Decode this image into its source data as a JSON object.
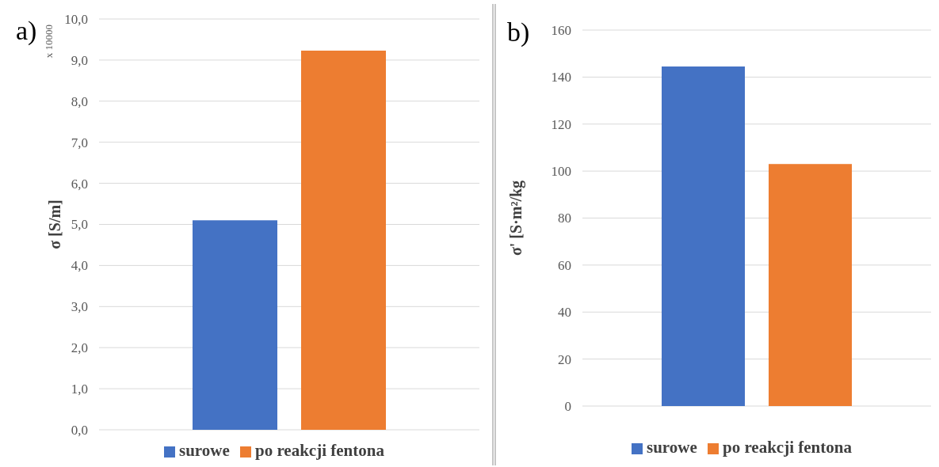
{
  "chart_data": [
    {
      "type": "bar",
      "title": "a)",
      "ylabel": "σ [S/m]",
      "annotations": [
        "x 10000"
      ],
      "categories": [
        null
      ],
      "series": [
        {
          "name": "surowe",
          "color": "#4472c4",
          "values": [
            5.1
          ]
        },
        {
          "name": "po reakcji fentona",
          "color": "#ed7d31",
          "values": [
            9.23
          ]
        }
      ],
      "ylim": [
        0,
        10
      ],
      "yticks": [
        {
          "value": 0,
          "label": "0,0"
        },
        {
          "value": 1,
          "label": "1,0"
        },
        {
          "value": 2,
          "label": "2,0"
        },
        {
          "value": 3,
          "label": "3,0"
        },
        {
          "value": 4,
          "label": "4,0"
        },
        {
          "value": 5,
          "label": "5,0"
        },
        {
          "value": 6,
          "label": "6,0"
        },
        {
          "value": 7,
          "label": "7,0"
        },
        {
          "value": 8,
          "label": "8,0"
        },
        {
          "value": 9,
          "label": "9,0"
        },
        {
          "value": 10,
          "label": "10,0"
        }
      ],
      "grid": "y",
      "legend": "bottom"
    },
    {
      "type": "bar",
      "title": "b)",
      "ylabel": "σ' [S·m²/kg",
      "categories": [
        null
      ],
      "series": [
        {
          "name": "surowe",
          "color": "#4472c4",
          "values": [
            144.5
          ]
        },
        {
          "name": "po reakcji fentona",
          "color": "#ed7d31",
          "values": [
            103
          ]
        }
      ],
      "ylim": [
        0,
        160
      ],
      "yticks": [
        0,
        20,
        40,
        60,
        80,
        100,
        120,
        140,
        160
      ],
      "grid": "y",
      "legend": "bottom"
    }
  ]
}
